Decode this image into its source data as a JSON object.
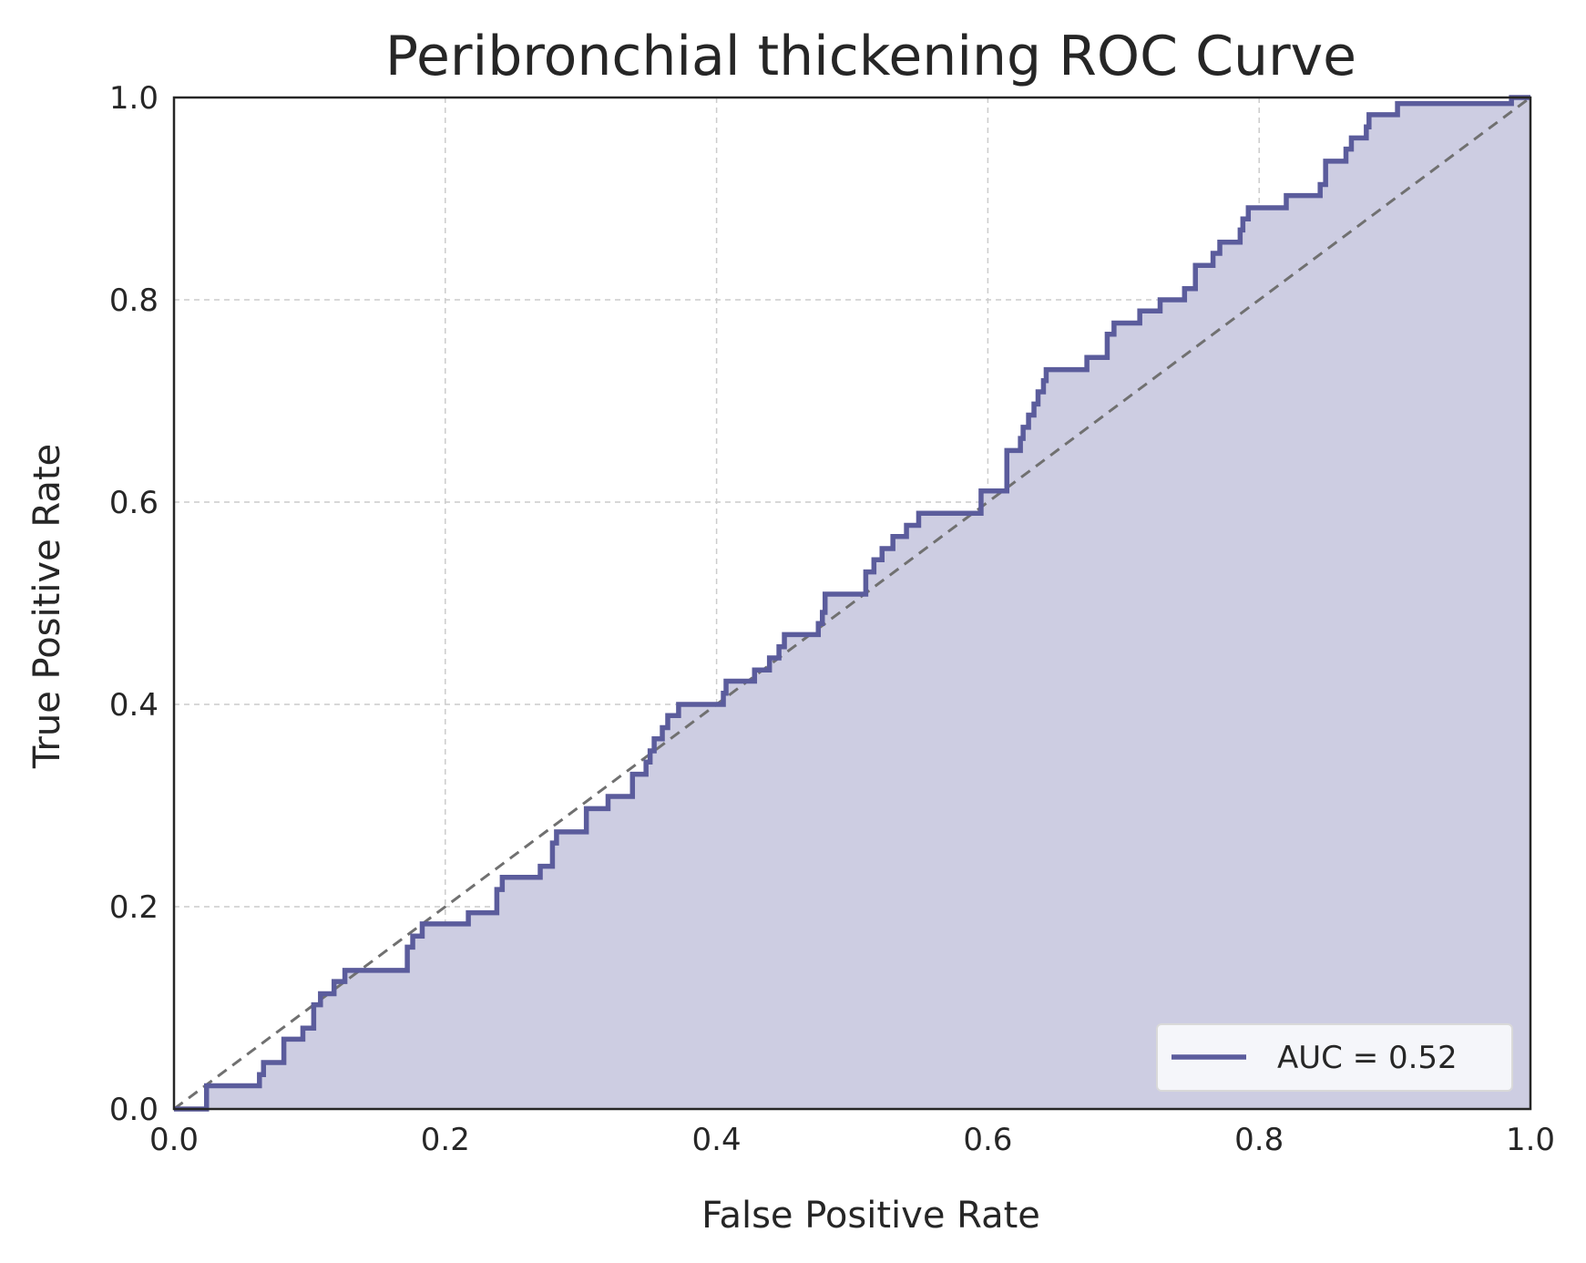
{
  "chart_data": {
    "type": "line",
    "title": "Peribronchial thickening ROC Curve",
    "xlabel": "False Positive Rate",
    "ylabel": "True Positive Rate",
    "xlim": [
      0.0,
      1.0
    ],
    "ylim": [
      0.0,
      1.0
    ],
    "xticks": [
      "0.0",
      "0.2",
      "0.4",
      "0.6",
      "0.8",
      "1.0"
    ],
    "yticks": [
      "0.0",
      "0.2",
      "0.4",
      "0.6",
      "0.8",
      "1.0"
    ],
    "grid": true,
    "legend_position": "lower-right",
    "series": [
      {
        "name": "AUC = 0.52",
        "color": "#5b5c9c",
        "fill_color": "#cdcde2",
        "points": [
          [
            0.0,
            0.0
          ],
          [
            0.024,
            0.0
          ],
          [
            0.024,
            0.023
          ],
          [
            0.063,
            0.023
          ],
          [
            0.063,
            0.034
          ],
          [
            0.066,
            0.034
          ],
          [
            0.066,
            0.046
          ],
          [
            0.081,
            0.046
          ],
          [
            0.081,
            0.069
          ],
          [
            0.095,
            0.069
          ],
          [
            0.095,
            0.08
          ],
          [
            0.103,
            0.08
          ],
          [
            0.103,
            0.103
          ],
          [
            0.108,
            0.103
          ],
          [
            0.108,
            0.114
          ],
          [
            0.118,
            0.114
          ],
          [
            0.118,
            0.126
          ],
          [
            0.126,
            0.126
          ],
          [
            0.126,
            0.137
          ],
          [
            0.172,
            0.137
          ],
          [
            0.172,
            0.16
          ],
          [
            0.176,
            0.16
          ],
          [
            0.176,
            0.171
          ],
          [
            0.183,
            0.171
          ],
          [
            0.183,
            0.183
          ],
          [
            0.217,
            0.183
          ],
          [
            0.217,
            0.194
          ],
          [
            0.238,
            0.194
          ],
          [
            0.238,
            0.217
          ],
          [
            0.242,
            0.217
          ],
          [
            0.242,
            0.229
          ],
          [
            0.27,
            0.229
          ],
          [
            0.27,
            0.24
          ],
          [
            0.279,
            0.24
          ],
          [
            0.279,
            0.263
          ],
          [
            0.282,
            0.263
          ],
          [
            0.282,
            0.274
          ],
          [
            0.304,
            0.274
          ],
          [
            0.304,
            0.297
          ],
          [
            0.32,
            0.297
          ],
          [
            0.32,
            0.309
          ],
          [
            0.338,
            0.309
          ],
          [
            0.338,
            0.331
          ],
          [
            0.348,
            0.331
          ],
          [
            0.348,
            0.343
          ],
          [
            0.351,
            0.343
          ],
          [
            0.351,
            0.354
          ],
          [
            0.354,
            0.354
          ],
          [
            0.354,
            0.366
          ],
          [
            0.36,
            0.366
          ],
          [
            0.36,
            0.377
          ],
          [
            0.364,
            0.377
          ],
          [
            0.364,
            0.389
          ],
          [
            0.372,
            0.389
          ],
          [
            0.372,
            0.4
          ],
          [
            0.405,
            0.4
          ],
          [
            0.405,
            0.411
          ],
          [
            0.407,
            0.411
          ],
          [
            0.407,
            0.423
          ],
          [
            0.428,
            0.423
          ],
          [
            0.428,
            0.434
          ],
          [
            0.439,
            0.434
          ],
          [
            0.439,
            0.446
          ],
          [
            0.446,
            0.446
          ],
          [
            0.446,
            0.457
          ],
          [
            0.45,
            0.457
          ],
          [
            0.45,
            0.469
          ],
          [
            0.475,
            0.469
          ],
          [
            0.475,
            0.48
          ],
          [
            0.478,
            0.48
          ],
          [
            0.478,
            0.491
          ],
          [
            0.48,
            0.491
          ],
          [
            0.48,
            0.509
          ],
          [
            0.51,
            0.509
          ],
          [
            0.51,
            0.531
          ],
          [
            0.516,
            0.531
          ],
          [
            0.516,
            0.543
          ],
          [
            0.522,
            0.543
          ],
          [
            0.522,
            0.554
          ],
          [
            0.53,
            0.554
          ],
          [
            0.53,
            0.566
          ],
          [
            0.54,
            0.566
          ],
          [
            0.54,
            0.577
          ],
          [
            0.549,
            0.577
          ],
          [
            0.549,
            0.589
          ],
          [
            0.595,
            0.589
          ],
          [
            0.595,
            0.611
          ],
          [
            0.614,
            0.611
          ],
          [
            0.614,
            0.651
          ],
          [
            0.624,
            0.651
          ],
          [
            0.624,
            0.663
          ],
          [
            0.626,
            0.663
          ],
          [
            0.626,
            0.674
          ],
          [
            0.63,
            0.674
          ],
          [
            0.63,
            0.686
          ],
          [
            0.634,
            0.686
          ],
          [
            0.634,
            0.697
          ],
          [
            0.637,
            0.697
          ],
          [
            0.637,
            0.709
          ],
          [
            0.641,
            0.709
          ],
          [
            0.641,
            0.72
          ],
          [
            0.643,
            0.72
          ],
          [
            0.643,
            0.731
          ],
          [
            0.673,
            0.731
          ],
          [
            0.673,
            0.743
          ],
          [
            0.688,
            0.743
          ],
          [
            0.688,
            0.766
          ],
          [
            0.693,
            0.766
          ],
          [
            0.693,
            0.777
          ],
          [
            0.712,
            0.777
          ],
          [
            0.712,
            0.789
          ],
          [
            0.727,
            0.789
          ],
          [
            0.727,
            0.8
          ],
          [
            0.745,
            0.8
          ],
          [
            0.745,
            0.811
          ],
          [
            0.753,
            0.811
          ],
          [
            0.753,
            0.834
          ],
          [
            0.766,
            0.834
          ],
          [
            0.766,
            0.846
          ],
          [
            0.771,
            0.846
          ],
          [
            0.771,
            0.857
          ],
          [
            0.786,
            0.857
          ],
          [
            0.786,
            0.869
          ],
          [
            0.788,
            0.869
          ],
          [
            0.788,
            0.88
          ],
          [
            0.792,
            0.88
          ],
          [
            0.792,
            0.891
          ],
          [
            0.82,
            0.891
          ],
          [
            0.82,
            0.903
          ],
          [
            0.845,
            0.903
          ],
          [
            0.845,
            0.914
          ],
          [
            0.849,
            0.914
          ],
          [
            0.849,
            0.937
          ],
          [
            0.864,
            0.937
          ],
          [
            0.864,
            0.949
          ],
          [
            0.868,
            0.949
          ],
          [
            0.868,
            0.96
          ],
          [
            0.879,
            0.96
          ],
          [
            0.879,
            0.971
          ],
          [
            0.881,
            0.971
          ],
          [
            0.881,
            0.983
          ],
          [
            0.902,
            0.983
          ],
          [
            0.902,
            0.994
          ],
          [
            0.986,
            0.994
          ],
          [
            0.986,
            1.0
          ],
          [
            1.0,
            1.0
          ]
        ]
      }
    ],
    "reference_line": [
      [
        0.0,
        0.0
      ],
      [
        1.0,
        1.0
      ]
    ]
  }
}
